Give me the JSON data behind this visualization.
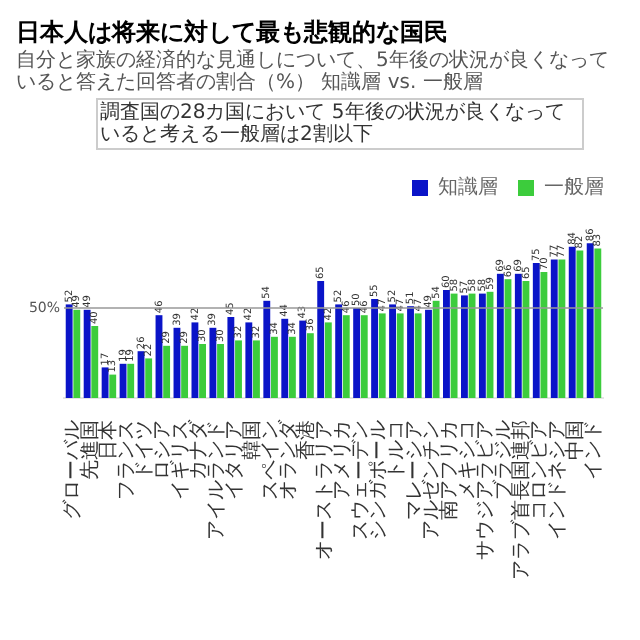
{
  "chart_data": {
    "type": "bar",
    "title": "日本人は将来に対して最も悲観的な国民",
    "subtitle": "自分と家族の経済的な見通しについて、5年後の状況が良くなっていると答えた回答者の割合（%） 知識層 vs. 一般層",
    "categories": [
      "グローバル",
      "先進国",
      "日本",
      "フランス",
      "ドイツ",
      "ロシア",
      "イギリス",
      "カナダ",
      "アイルランド",
      "イタリア",
      "韓国",
      "スペイン",
      "オランダ",
      "香港",
      "オーストラリア",
      "アメリカ",
      "スウェーデン",
      "シンガポール",
      "トルコ",
      "マレーシア",
      "アルゼンチン",
      "南アフリカ",
      "メキシコ",
      "サウジアラビア",
      "ブラジル",
      "アラブ首長国連邦",
      "コロンビア",
      "インドネシア",
      "中国",
      "インド"
    ],
    "series": [
      {
        "name": "知識層",
        "color": "#0a14c8",
        "values": [
          52,
          49,
          17,
          19,
          26,
          46,
          39,
          42,
          39,
          45,
          42,
          54,
          44,
          43,
          65,
          52,
          50,
          55,
          52,
          51,
          49,
          60,
          57,
          58,
          69,
          69,
          75,
          77,
          84,
          86
        ]
      },
      {
        "name": "一般層",
        "color": "#3ccc3c",
        "values": [
          49,
          40,
          13,
          19,
          22,
          29,
          29,
          30,
          30,
          32,
          32,
          34,
          34,
          36,
          42,
          46,
          46,
          47,
          47,
          47,
          54,
          58,
          58,
          59,
          66,
          65,
          70,
          77,
          82,
          83
        ]
      }
    ],
    "ref_lines": [
      {
        "axis": "y",
        "value": 50,
        "label": "50%"
      }
    ],
    "data_labels": true,
    "legend": "top right",
    "annotations": [
      "調査国の28カ国において 5年後の状況が良くなっていると考える一般層は2割以下"
    ]
  }
}
